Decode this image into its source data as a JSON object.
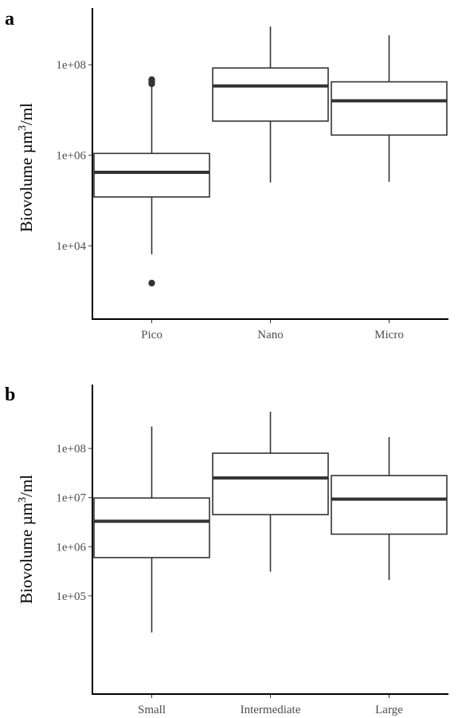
{
  "chart_data": [
    {
      "type": "box",
      "panel_label": "a",
      "ylabel_prefix": "Biovolume µm",
      "ylabel_exp": "3",
      "ylabel_suffix": "/ml",
      "y_scale": "log10",
      "ylim": [
        240,
        1800000000
      ],
      "yticks": [
        10000,
        1000000,
        100000000
      ],
      "ytick_labels": [
        "1e+04",
        "1e+06",
        "1e+08"
      ],
      "categories": [
        "Pico",
        "Nano",
        "Micro"
      ],
      "boxes": [
        {
          "category": "Pico",
          "whisker_low": 6500,
          "q1": 120000,
          "median": 420000,
          "q3": 1100000,
          "whisker_high": 35000000,
          "outliers": [
            1500,
            38000000,
            42000000,
            47000000
          ]
        },
        {
          "category": "Nano",
          "whisker_low": 250000,
          "q1": 5700000,
          "median": 34000000,
          "q3": 85000000,
          "whisker_high": 700000000,
          "outliers": []
        },
        {
          "category": "Micro",
          "whisker_low": 260000,
          "q1": 2800000,
          "median": 16000000,
          "q3": 42000000,
          "whisker_high": 450000000,
          "outliers": []
        }
      ],
      "grid": false
    },
    {
      "type": "box",
      "panel_label": "b",
      "ylabel_prefix": "Biovolume µm",
      "ylabel_exp": "3",
      "ylabel_suffix": "/ml",
      "y_scale": "log10",
      "ylim": [
        1000,
        2000000000
      ],
      "yticks": [
        100000,
        1000000,
        10000000,
        100000000
      ],
      "ytick_labels": [
        "1e+05",
        "1e+06",
        "1e+07",
        "1e+08"
      ],
      "categories": [
        "Small",
        "Intermediate",
        "Large"
      ],
      "boxes": [
        {
          "category": "Small",
          "whisker_low": 18000,
          "q1": 600000,
          "median": 3300000,
          "q3": 9800000,
          "whisker_high": 280000000,
          "outliers": []
        },
        {
          "category": "Intermediate",
          "whisker_low": 310000,
          "q1": 4500000,
          "median": 25000000,
          "q3": 80000000,
          "whisker_high": 560000000,
          "outliers": []
        },
        {
          "category": "Large",
          "whisker_low": 210000,
          "q1": 1800000,
          "median": 9300000,
          "q3": 28000000,
          "whisker_high": 170000000,
          "outliers": []
        }
      ],
      "grid": false
    }
  ]
}
